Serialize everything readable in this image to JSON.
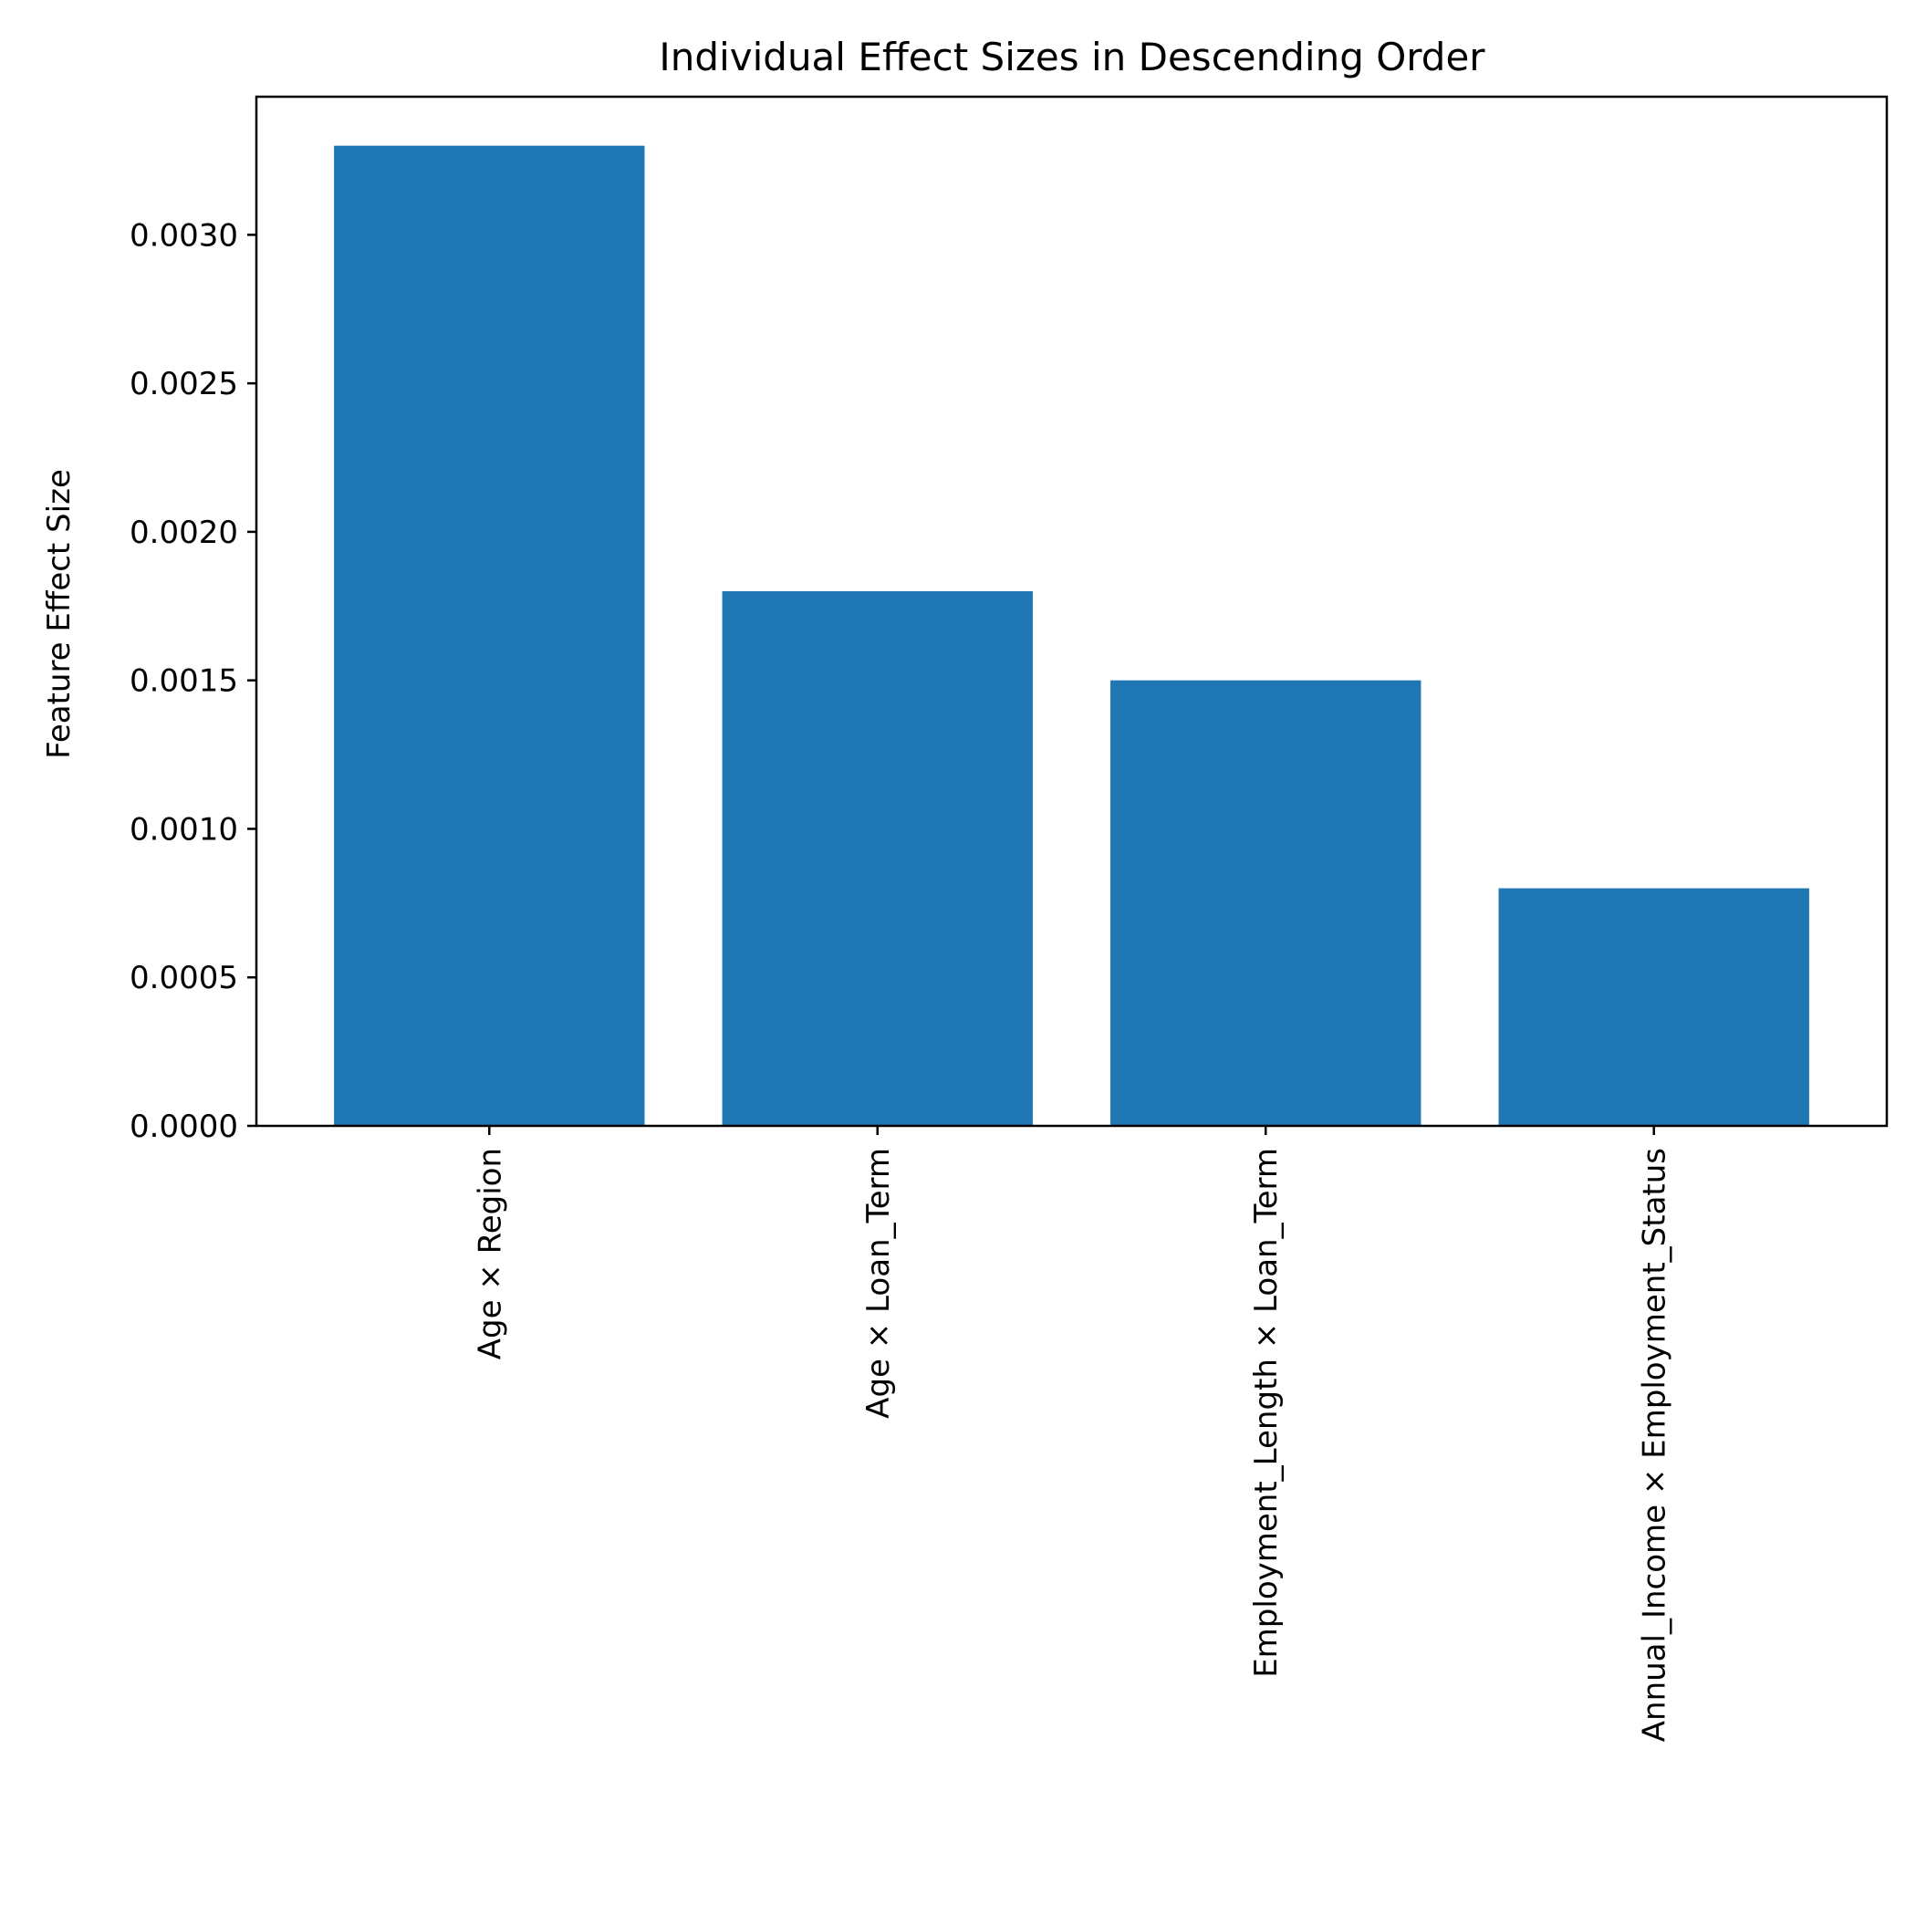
{
  "chart_data": {
    "type": "bar",
    "title": "Individual Effect Sizes in Descending Order",
    "xlabel": "",
    "ylabel": "Feature Effect Size",
    "categories": [
      "Age × Region",
      "Age × Loan_Term",
      "Employment_Length × Loan_Term",
      "Annual_Income × Employment_Status"
    ],
    "values": [
      0.0033,
      0.0018,
      0.0015,
      0.0008
    ],
    "ylim": [
      0,
      0.003465
    ],
    "yticks": [
      "0.0000",
      "0.0005",
      "0.0010",
      "0.0015",
      "0.0020",
      "0.0025",
      "0.0030"
    ],
    "bar_color": "#1f77b4",
    "grid": false,
    "legend": "none"
  }
}
